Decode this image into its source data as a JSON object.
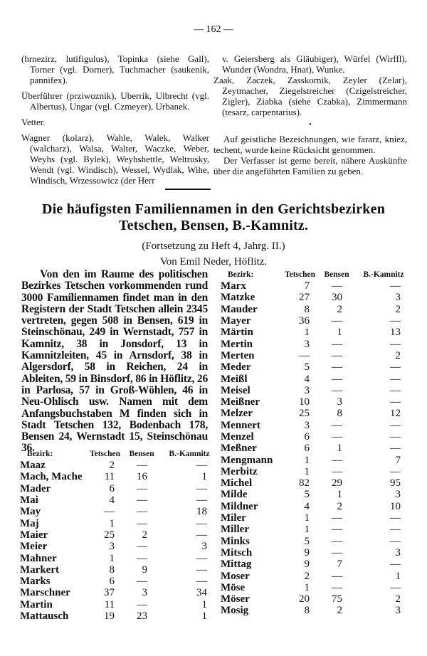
{
  "page_number": "— 162 —",
  "top_left": [
    "(hrnezirz, lutifigulus), Topinka (siehe Gall), Torner (vgl. Dorner), Tuchmacher (saukenik, pannifex).",
    "Überführer (prziwoznik), Uberrik, Ulbrecht (vgl. Albertus), Ungar (vgl. Czmeyer), Urbanek.",
    "Vetter.",
    "Wagner (kolarz), Wahle, Walek, Walker (walcharz), Walsa, Walter, Waczke, Weber, Weyhs (vgl. Bylek), Weyhshettle, Weltrusky, Wendt (vgl. Windisch), Wessel, Wydlak, Wihe, Windisch, Wrzessowicz (der Herr"
  ],
  "top_right": {
    "continuation": "v. Geiersberg als Gläubiger), Würfel (Wirffl), Wunder (Wondra, Hnat), Wunke.",
    "z_entry": "Zaak, Zaczek, Zasskornik, Zeyler (Zelar), Zeytmacher, Ziegelstreicher (Czigelstreicher, Zigler), Ziabka (siehe Czabka), Zimmermann (tesarz, carpentarius).",
    "separator": "•",
    "note1": "Auf geistliche Bezeichnungen, wie fararz, kniez, techent, wurde keine Rücksicht genommen.",
    "note2": "Der Verfasser ist gerne bereit, nähere Auskünfte über die angeführten Familien zu geben."
  },
  "article": {
    "title_line1": "Die häufigsten Familiennamen in den Gerichtsbezirken",
    "title_line2": "Tetschen, Bensen, B.-Kamnitz.",
    "subtitle": "(Fortsetzung zu Heft 4, Jahrg. II.)",
    "author": "Von Emil Neder, Höflitz.",
    "intro": "Von den im Raume des politischen Bezirkes Tetschen vorkommenden rund 3000 Familiennamen findet man in den Registern der Stadt Tetschen allein 2345 vertreten, gegen 508 in Bensen, 619 in Steinschönau, 249 in Wernstadt, 757 in Kamnitz, 38 in Jonsdorf, 13 in Kamnitzleiten, 45 in Arnsdorf, 38 in Algersdorf, 58 in Reichen, 24 in Ableiten, 59 in Binsdorf, 86 in Höflitz, 26 in Parlosa, 57 in Groß-Wöhlen, 46 in Neu-Ohlisch usw. Namen mit dem Anfangsbuchstaben M finden sich in Stadt Tetschen 132, Bodenbach 178, Bensen 24, Wernstadt 15, Steinschönau 36."
  },
  "table_headers": [
    "Bezirk:",
    "Tetschen",
    "Bensen",
    "B.-Kamnitz"
  ],
  "table_left": [
    [
      "Maaz",
      "2",
      "—",
      "—"
    ],
    [
      "Mach, Mache",
      "11",
      "16",
      "1"
    ],
    [
      "Mader",
      "6",
      "—",
      "—"
    ],
    [
      "Mai",
      "4",
      "—",
      "—"
    ],
    [
      "May",
      "—",
      "—",
      "18"
    ],
    [
      "Maj",
      "1",
      "—",
      "—"
    ],
    [
      "Maier",
      "25",
      "2",
      "—"
    ],
    [
      "Meier",
      "3",
      "—",
      "3"
    ],
    [
      "Mahner",
      "1",
      "—",
      "—"
    ],
    [
      "Markert",
      "8",
      "9",
      "—"
    ],
    [
      "Marks",
      "6",
      "—",
      "—"
    ],
    [
      "Marschner",
      "37",
      "3",
      "34"
    ],
    [
      "Martin",
      "11",
      "—",
      "1"
    ],
    [
      "Mattausch",
      "19",
      "23",
      "1"
    ]
  ],
  "table_right": [
    [
      "Marx",
      "7",
      "—",
      "—"
    ],
    [
      "Matzke",
      "27",
      "30",
      "3"
    ],
    [
      "Mauder",
      "8",
      "2",
      "2"
    ],
    [
      "Mayer",
      "36",
      "—",
      "—"
    ],
    [
      "Märtin",
      "1",
      "1",
      "13"
    ],
    [
      "Mertin",
      "3",
      "—",
      "—"
    ],
    [
      "Merten",
      "—",
      "—",
      "2"
    ],
    [
      "Meder",
      "5",
      "—",
      "—"
    ],
    [
      "Meißl",
      "4",
      "—",
      "—"
    ],
    [
      "Meisel",
      "3",
      "—",
      "—"
    ],
    [
      "Meißner",
      "10",
      "3",
      "—"
    ],
    [
      "Melzer",
      "25",
      "8",
      "12"
    ],
    [
      "Mennert",
      "3",
      "—",
      "—"
    ],
    [
      "Menzel",
      "6",
      "—",
      "—"
    ],
    [
      "Meßner",
      "6",
      "1",
      "—"
    ],
    [
      "Mengmann",
      "1",
      "—",
      "7"
    ],
    [
      "Merbitz",
      "1",
      "—",
      "—"
    ],
    [
      "Michel",
      "82",
      "29",
      "95"
    ],
    [
      "Milde",
      "5",
      "1",
      "3"
    ],
    [
      "Mildner",
      "4",
      "2",
      "10"
    ],
    [
      "Miler",
      "1",
      "—",
      "—"
    ],
    [
      "Miller",
      "1",
      "—",
      "—"
    ],
    [
      "Minks",
      "5",
      "—",
      "—"
    ],
    [
      "Mitsch",
      "9",
      "—",
      "3"
    ],
    [
      "Mittag",
      "9",
      "7",
      "—"
    ],
    [
      "Moser",
      "2",
      "—",
      "1"
    ],
    [
      "Möse",
      "1",
      "—",
      "—"
    ],
    [
      "Möser",
      "20",
      "75",
      "2"
    ],
    [
      "Mosig",
      "8",
      "2",
      "3"
    ]
  ]
}
